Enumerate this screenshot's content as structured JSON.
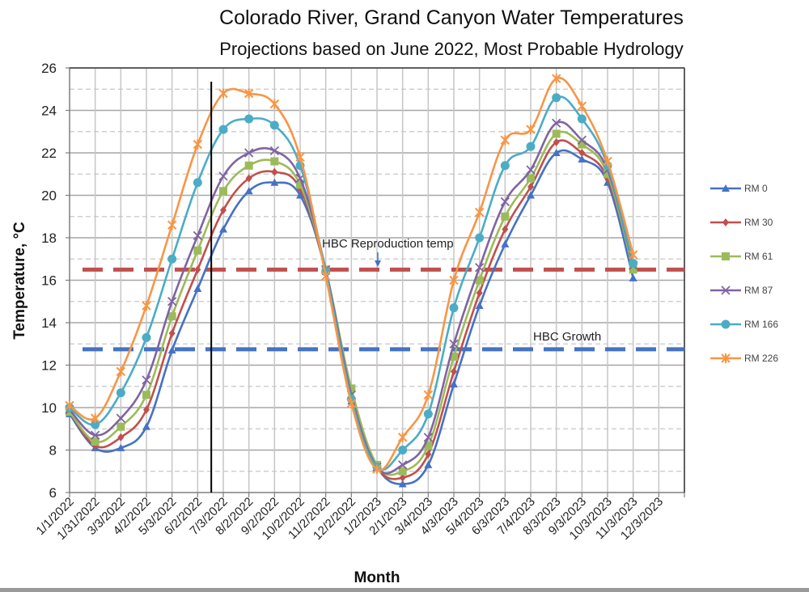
{
  "chart_data": {
    "type": "line",
    "title": "Colorado River, Grand Canyon Water Temperatures",
    "subtitle": "Projections based on June 2022, Most Probable Hydrology",
    "xlabel": "Month",
    "ylabel": "Temperature, °C",
    "ylim": [
      6,
      26
    ],
    "yticks": [
      6,
      8,
      10,
      12,
      14,
      16,
      18,
      20,
      22,
      24,
      26
    ],
    "grid": true,
    "legend_position": "right",
    "categories": [
      "1/1/2022",
      "1/31/2022",
      "3/3/2022",
      "4/2/2022",
      "5/3/2022",
      "6/2/2022",
      "7/3/2022",
      "8/2/2022",
      "9/2/2022",
      "10/2/2022",
      "11/2/2022",
      "12/2/2022",
      "1/2/2023",
      "2/1/2023",
      "3/4/2023",
      "4/3/2023",
      "5/4/2023",
      "6/3/2023",
      "7/4/2023",
      "8/3/2023",
      "9/3/2023",
      "10/3/2023",
      "11/3/2023",
      "12/3/2023"
    ],
    "series": [
      {
        "name": "RM 0",
        "color": "#4472C4",
        "marker": "triangle",
        "values": [
          9.7,
          8.1,
          8.1,
          9.1,
          12.7,
          15.6,
          18.4,
          20.2,
          20.6,
          20.0,
          16.4,
          10.3,
          7.2,
          6.4,
          7.3,
          11.1,
          14.8,
          17.7,
          20.0,
          22.0,
          21.7,
          20.6,
          16.1,
          null
        ]
      },
      {
        "name": "RM 30",
        "color": "#C0504D",
        "marker": "diamond",
        "values": [
          9.8,
          8.2,
          8.6,
          9.9,
          13.5,
          16.5,
          19.3,
          20.8,
          21.1,
          20.3,
          16.4,
          10.4,
          7.2,
          6.7,
          7.8,
          11.7,
          15.4,
          18.4,
          20.4,
          22.5,
          22.0,
          20.8,
          16.6,
          null
        ]
      },
      {
        "name": "RM 61",
        "color": "#9BBB59",
        "marker": "square",
        "values": [
          9.8,
          8.4,
          9.1,
          10.6,
          14.3,
          17.4,
          20.2,
          21.4,
          21.6,
          20.5,
          16.5,
          10.9,
          7.3,
          7.0,
          8.2,
          12.4,
          16.0,
          19.0,
          20.8,
          22.9,
          22.4,
          21.0,
          16.5,
          null
        ]
      },
      {
        "name": "RM 87",
        "color": "#8064A2",
        "marker": "x",
        "values": [
          9.9,
          8.7,
          9.5,
          11.3,
          15.0,
          18.1,
          20.9,
          22.0,
          22.1,
          20.8,
          16.5,
          10.6,
          7.2,
          7.3,
          8.6,
          13.0,
          16.6,
          19.7,
          21.2,
          23.4,
          22.6,
          21.2,
          16.7,
          null
        ]
      },
      {
        "name": "RM 166",
        "color": "#4BACC6",
        "marker": "circle",
        "values": [
          10.0,
          9.2,
          10.7,
          13.3,
          17.0,
          20.6,
          23.1,
          23.6,
          23.3,
          21.4,
          16.4,
          10.4,
          7.2,
          8.0,
          9.7,
          14.7,
          18.0,
          21.4,
          22.3,
          24.6,
          23.6,
          21.4,
          16.8,
          null
        ]
      },
      {
        "name": "RM 226",
        "color": "#F79646",
        "marker": "star",
        "values": [
          10.1,
          9.5,
          11.7,
          14.8,
          18.6,
          22.4,
          24.8,
          24.8,
          24.3,
          21.8,
          16.2,
          10.2,
          7.1,
          8.6,
          10.6,
          16.0,
          19.2,
          22.6,
          23.1,
          25.5,
          24.2,
          21.6,
          17.2,
          null
        ]
      }
    ],
    "reference_lines": [
      {
        "name": "HBC Reproduction temp",
        "value": 16.5,
        "color": "#C0504D",
        "style": "dashed"
      },
      {
        "name": "HBC Growth",
        "value": 12.75,
        "color": "#4472C4",
        "style": "dashed"
      }
    ],
    "vertical_marker": {
      "category_position": 5.5,
      "color": "#000000"
    },
    "annotations": [
      {
        "text": "HBC Reproduction temp",
        "arrow": true,
        "arrow_color": "#4472C4"
      },
      {
        "text": "HBC Growth"
      }
    ]
  }
}
